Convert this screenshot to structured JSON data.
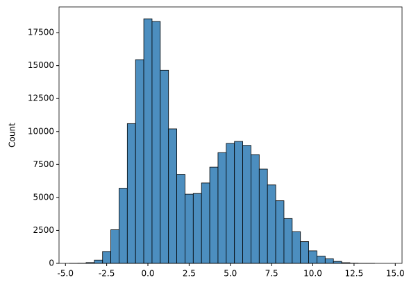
{
  "chart_data": {
    "type": "histogram",
    "y_label": "Count",
    "bins": [
      -4.75,
      -4.25,
      -3.75,
      -3.25,
      -2.75,
      -2.25,
      -1.75,
      -1.25,
      -0.75,
      -0.25,
      0.25,
      0.75,
      1.25,
      1.75,
      2.25,
      2.75,
      3.25,
      3.75,
      4.25,
      4.75,
      5.25,
      5.75,
      6.25,
      6.75,
      7.25,
      7.75,
      8.25,
      8.75,
      9.25,
      9.75,
      10.25,
      10.75,
      11.25,
      11.75,
      12.25,
      12.75,
      13.25,
      13.75
    ],
    "values": [
      2,
      10,
      60,
      250,
      900,
      2550,
      5700,
      10600,
      15450,
      18550,
      18350,
      14650,
      10200,
      6750,
      5250,
      5300,
      6100,
      7300,
      8400,
      9100,
      9250,
      8950,
      8250,
      7150,
      5950,
      4750,
      3400,
      2400,
      1650,
      950,
      550,
      350,
      150,
      50,
      15,
      5,
      2
    ],
    "color": "#4c8ebf",
    "xlim": [
      -5.39,
      15.41
    ],
    "xticks": [
      {
        "value": -5,
        "label": "-5.0"
      },
      {
        "value": -2.5,
        "label": "-2.5"
      },
      {
        "value": 0,
        "label": "0.0"
      },
      {
        "value": 2.5,
        "label": "2.5"
      },
      {
        "value": 5,
        "label": "5.0"
      },
      {
        "value": 7.5,
        "label": "7.5"
      },
      {
        "value": 10,
        "label": "10.0"
      },
      {
        "value": 12.5,
        "label": "12.5"
      },
      {
        "value": 15,
        "label": "15.0"
      }
    ],
    "ylim": [
      0,
      19450
    ],
    "yticks": [
      0,
      2500,
      5000,
      7500,
      10000,
      12500,
      15000,
      17500
    ]
  }
}
